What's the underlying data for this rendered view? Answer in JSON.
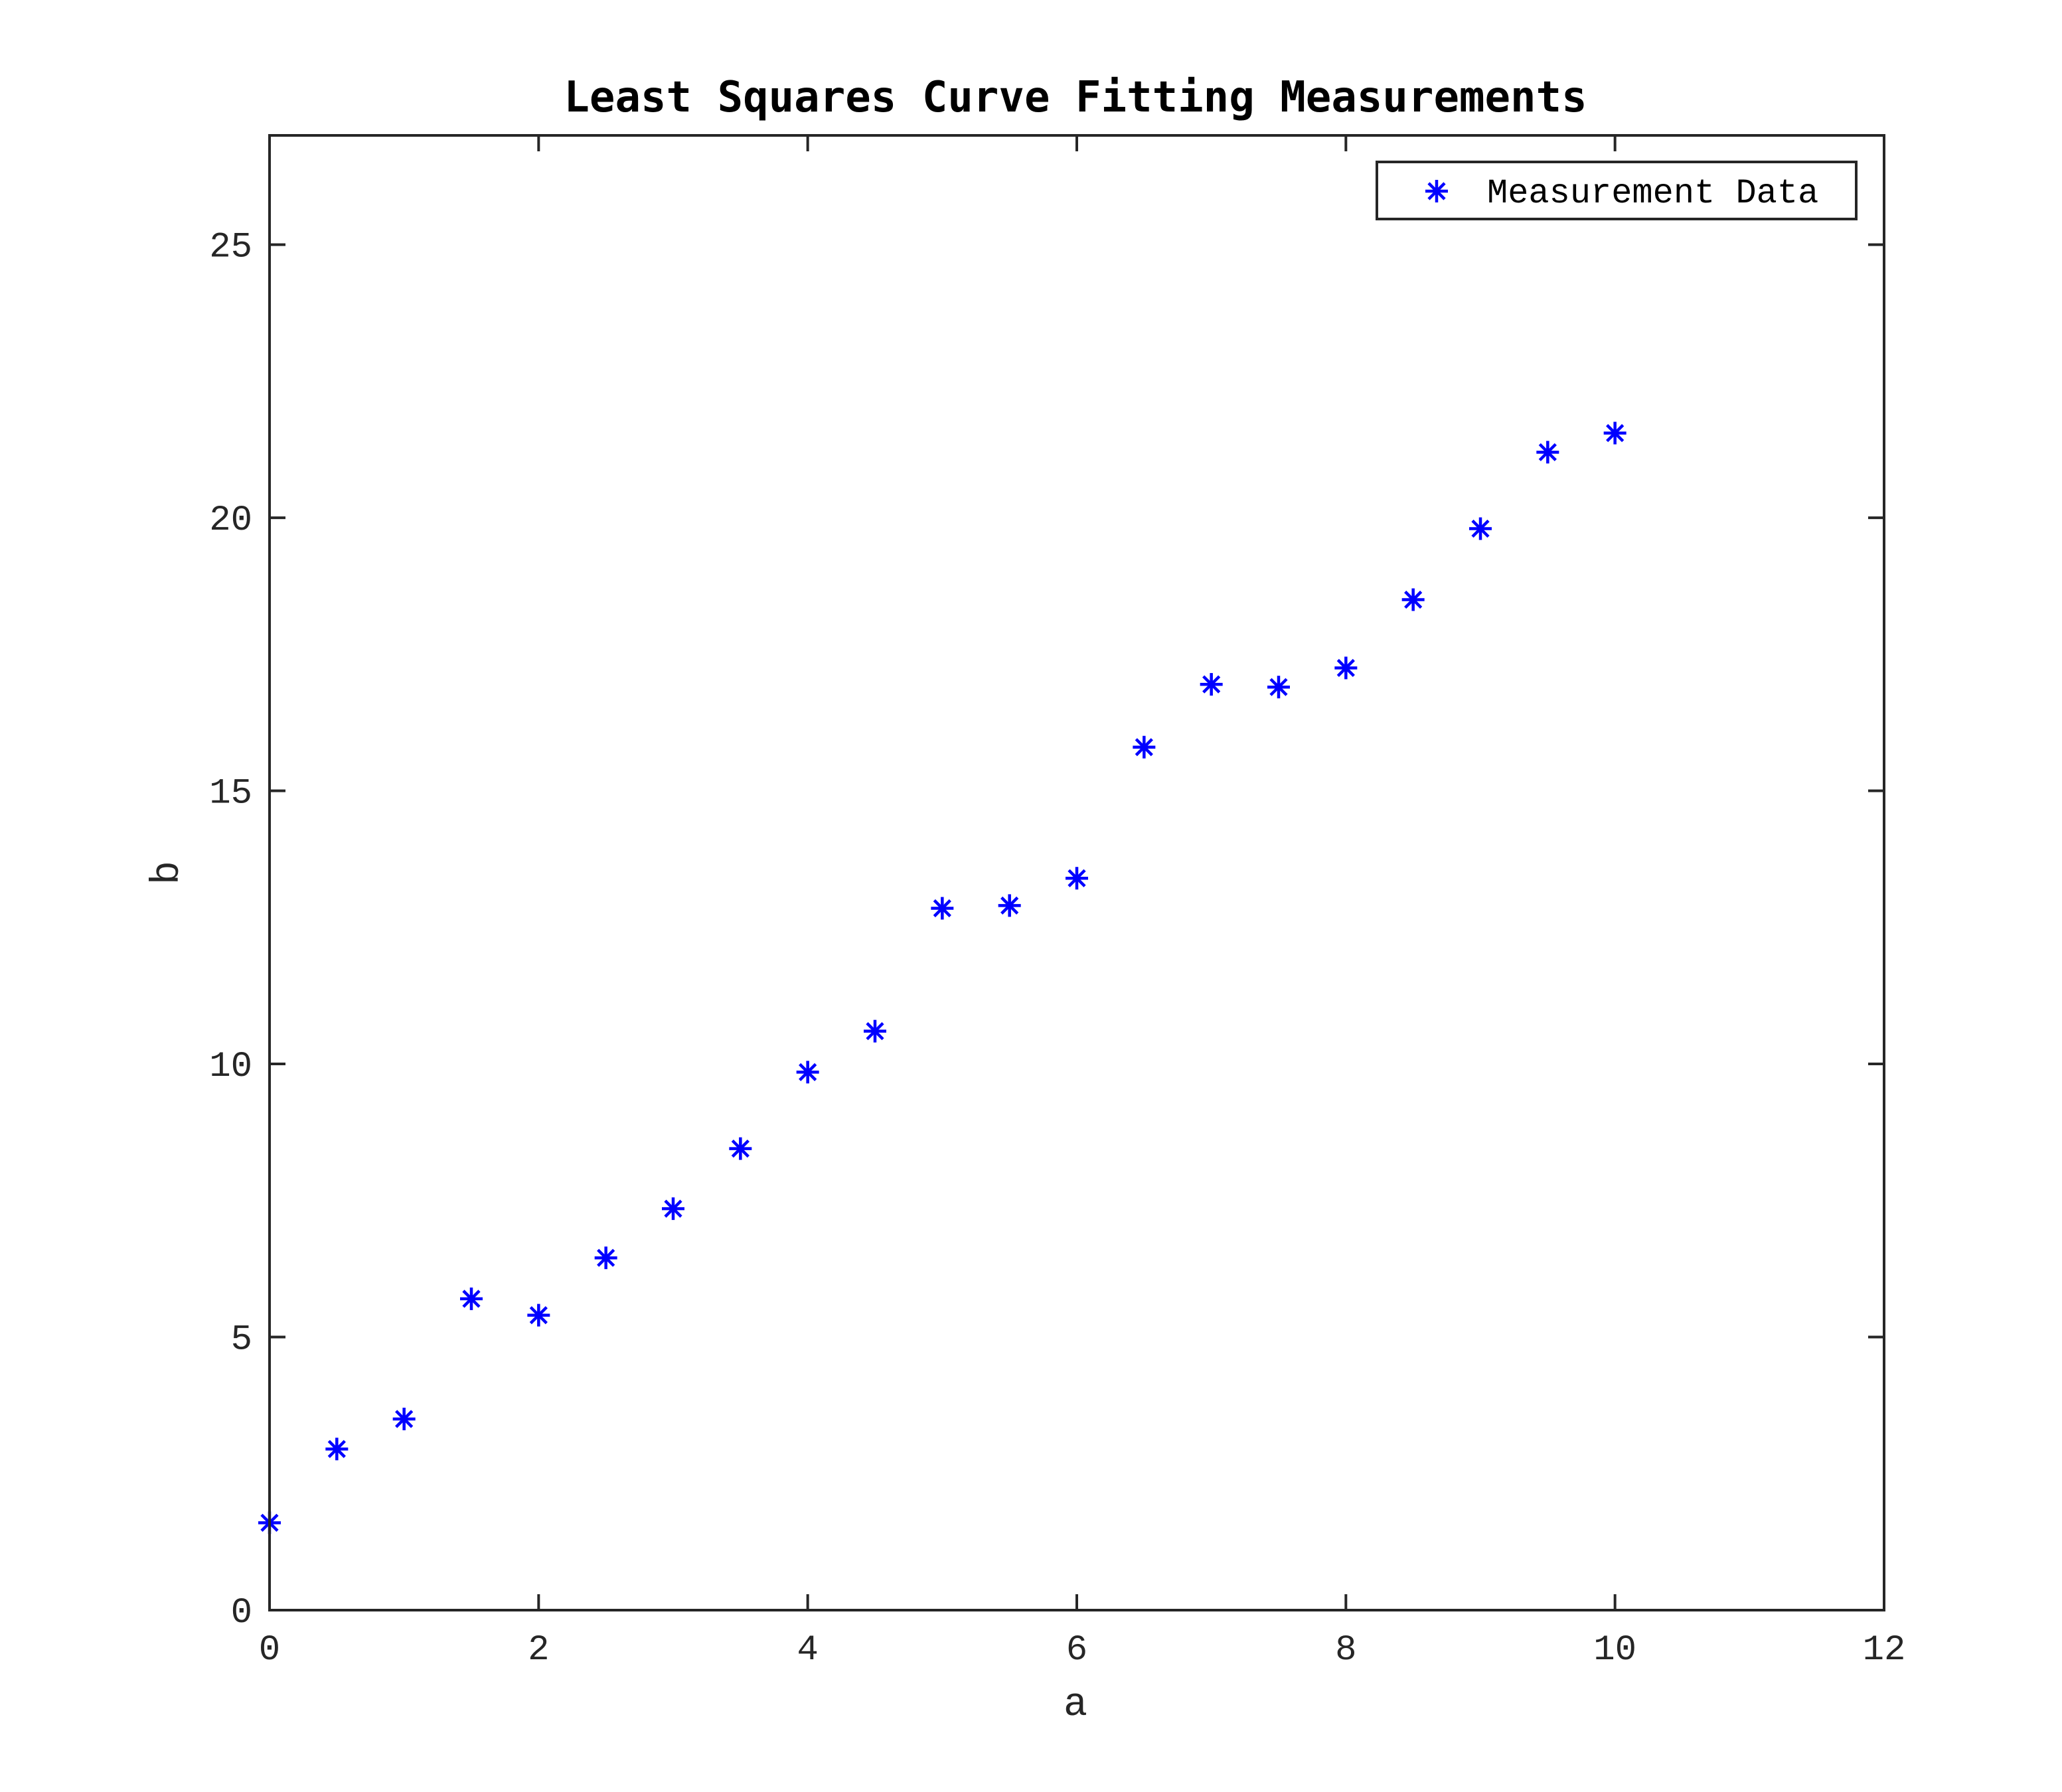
{
  "chart_data": {
    "type": "scatter",
    "title": "Least Squares Curve Fitting Measurements",
    "xlabel": "a",
    "ylabel": "b",
    "xlim": [
      0,
      12
    ],
    "ylim": [
      0,
      27
    ],
    "xticks": [
      0,
      2,
      4,
      6,
      8,
      10,
      12
    ],
    "xtick_labels": [
      "0",
      "2",
      "4",
      "6",
      "8",
      "10",
      "12"
    ],
    "yticks": [
      0,
      5,
      10,
      15,
      20,
      25
    ],
    "ytick_labels": [
      "0",
      "5",
      "10",
      "15",
      "20",
      "25"
    ],
    "grid": false,
    "legend_position": "top-right",
    "series": [
      {
        "name": "Measurement Data",
        "marker": "asterisk",
        "color": "#0000ff",
        "points": [
          [
            0,
            1.6
          ],
          [
            0.5,
            2.95
          ],
          [
            1,
            3.5
          ],
          [
            1.5,
            5.7
          ],
          [
            2,
            5.4
          ],
          [
            2.5,
            6.45
          ],
          [
            3,
            7.35
          ],
          [
            3.5,
            8.45
          ],
          [
            4,
            9.85
          ],
          [
            4.5,
            10.6
          ],
          [
            5,
            12.85
          ],
          [
            5.5,
            12.9
          ],
          [
            6,
            13.4
          ],
          [
            6.5,
            15.8
          ],
          [
            7,
            16.95
          ],
          [
            7.5,
            16.9
          ],
          [
            8,
            17.25
          ],
          [
            8.5,
            18.5
          ],
          [
            9,
            19.8
          ],
          [
            9.5,
            21.2
          ],
          [
            10,
            21.55
          ]
        ]
      }
    ]
  }
}
